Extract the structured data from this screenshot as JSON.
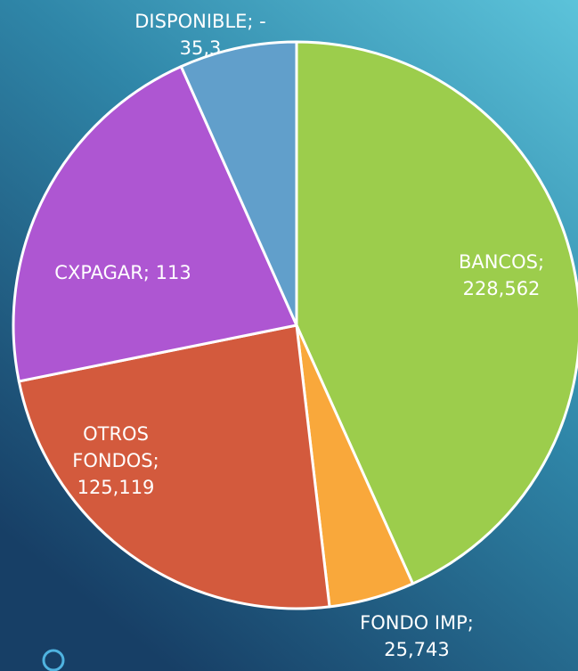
{
  "chart_data": {
    "type": "pie",
    "values": [
      228562,
      25743,
      125119,
      113500,
      -35300
    ],
    "value_labels": [
      [
        "BANCOS;",
        "228,562"
      ],
      [
        "FONDO IMP;",
        "25,743"
      ],
      [
        "OTROS",
        "FONDOS;",
        "125,119"
      ],
      [
        "CXPAGAR; 113"
      ],
      [
        "DISPONIBLE; -",
        "35,3"
      ]
    ],
    "colors": [
      "#9ccd4c",
      "#f9a83b",
      "#d35a3d",
      "#ae56d2",
      "#619fcb"
    ]
  }
}
